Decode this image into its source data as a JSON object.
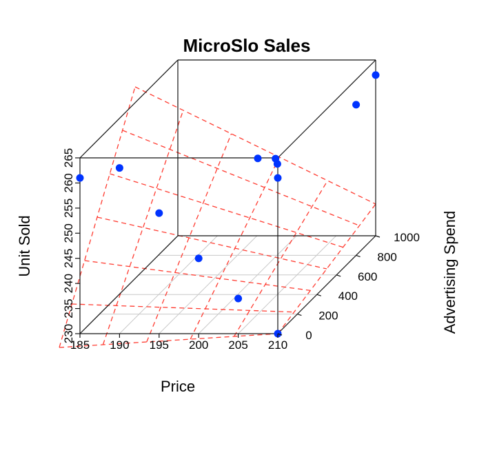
{
  "chart_data": {
    "type": "scatter",
    "title": "MicroSlo Sales",
    "xlabel": "Price",
    "ylabel": "Unit Sold",
    "zlabel": "Advertising Spend",
    "xlim": [
      185,
      210
    ],
    "ylim": [
      230,
      265
    ],
    "zlim": [
      0,
      1000
    ],
    "x_ticks": [
      "185",
      "190",
      "195",
      "200",
      "205",
      "210"
    ],
    "y_ticks": [
      "230",
      "235",
      "240",
      "245",
      "250",
      "255",
      "260",
      "265"
    ],
    "z_ticks": [
      "0",
      "200",
      "400",
      "600",
      "800",
      "1000"
    ],
    "point_color": "#0033ff",
    "plane_color": "#ff3b30",
    "points": [
      {
        "x": 185,
        "y": 261,
        "z": 0
      },
      {
        "x": 190,
        "y": 263,
        "z": 0
      },
      {
        "x": 195,
        "y": 254,
        "z": 0
      },
      {
        "x": 200,
        "y": 245,
        "z": 0
      },
      {
        "x": 205,
        "y": 237,
        "z": 0
      },
      {
        "x": 210,
        "y": 230,
        "z": 0
      },
      {
        "x": 210,
        "y": 261,
        "z": 0
      },
      {
        "x": 205,
        "y": 261,
        "z": 200
      },
      {
        "x": 206,
        "y": 259,
        "z": 300
      },
      {
        "x": 205,
        "y": 256,
        "z": 400
      },
      {
        "x": 210,
        "y": 260,
        "z": 800
      },
      {
        "x": 210,
        "y": 262,
        "z": 1000
      }
    ]
  }
}
